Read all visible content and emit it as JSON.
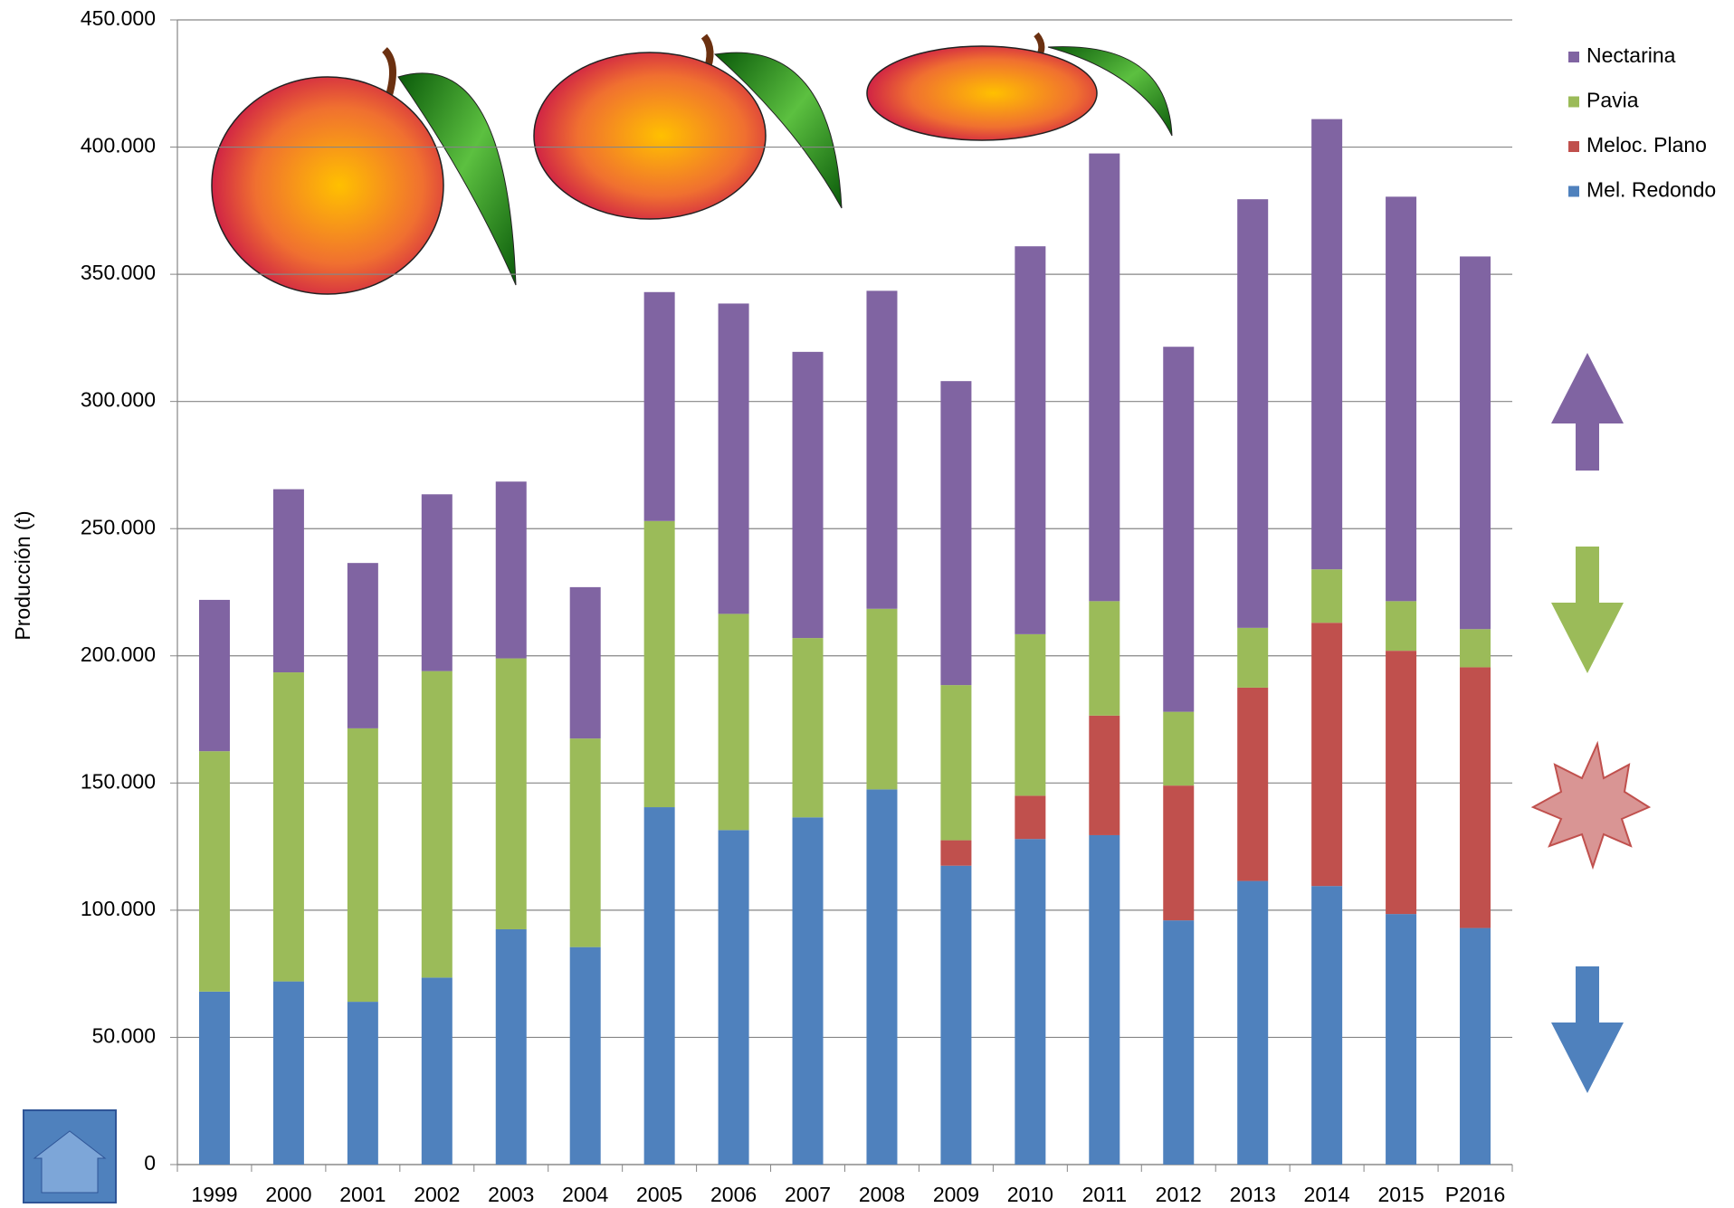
{
  "chart_data": {
    "type": "stacked_bar",
    "y_label": "Producción (t)",
    "categories": [
      "1999",
      "2000",
      "2001",
      "2002",
      "2003",
      "2004",
      "2005",
      "2006",
      "2007",
      "2008",
      "2009",
      "2010",
      "2011",
      "2012",
      "2013",
      "2014",
      "2015",
      "P2016"
    ],
    "series": [
      {
        "name": "Mel. Redondo",
        "color": "#4f81bd",
        "values": [
          68000,
          72000,
          64000,
          73500,
          92500,
          85500,
          140500,
          131500,
          136500,
          147500,
          117500,
          128000,
          129500,
          96000,
          111500,
          109500,
          98500,
          93000
        ]
      },
      {
        "name": "Meloc. Plano",
        "color": "#c0504d",
        "values": [
          0,
          0,
          0,
          0,
          0,
          0,
          0,
          0,
          0,
          0,
          10000,
          17000,
          47000,
          53000,
          76000,
          103500,
          103500,
          102500
        ]
      },
      {
        "name": "Pavia",
        "color": "#9bbb59",
        "values": [
          94500,
          121500,
          107500,
          120500,
          106500,
          82000,
          112500,
          85000,
          70500,
          71000,
          61000,
          63500,
          45000,
          29000,
          23500,
          21000,
          19500,
          15000
        ]
      },
      {
        "name": "Nectarina",
        "color": "#8064a2",
        "values": [
          59500,
          72000,
          65000,
          69500,
          69500,
          59500,
          90000,
          122000,
          112500,
          125000,
          119500,
          152500,
          176000,
          143500,
          168500,
          177000,
          159000,
          146500
        ]
      }
    ],
    "ylim": [
      0,
      450000
    ],
    "yticks": [
      0,
      {
        "value": 50000,
        "label": "50.000"
      },
      {
        "value": 100000,
        "label": "100.000"
      },
      {
        "value": 150000,
        "label": "150.000"
      },
      {
        "value": 200000,
        "label": "200.000"
      },
      {
        "value": 250000,
        "label": "250.000"
      },
      {
        "value": 300000,
        "label": "300.000"
      },
      {
        "value": 350000,
        "label": "350.000"
      },
      {
        "value": 400000,
        "label": "400.000"
      },
      {
        "value": 450000,
        "label": "450.000"
      }
    ],
    "grid": true,
    "legend": "top-right"
  }
}
